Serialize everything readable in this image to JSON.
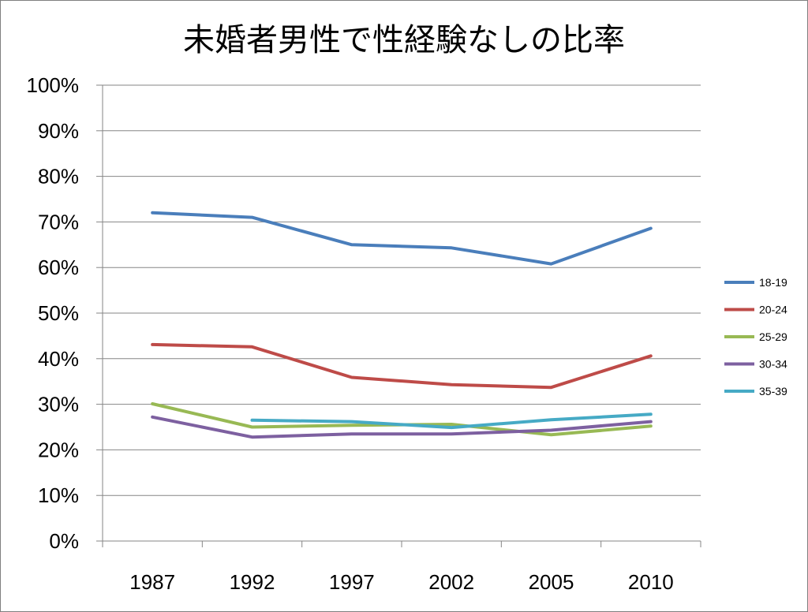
{
  "chart_data": {
    "type": "line",
    "title": "未婚者男性で性経験なしの比率",
    "xlabel": "",
    "ylabel": "",
    "categories": [
      "1987",
      "1992",
      "1997",
      "2002",
      "2005",
      "2010"
    ],
    "yticks": [
      "0%",
      "10%",
      "20%",
      "30%",
      "40%",
      "50%",
      "60%",
      "70%",
      "80%",
      "90%",
      "100%"
    ],
    "ylim": [
      0,
      100
    ],
    "grid": true,
    "legend_position": "right",
    "series": [
      {
        "name": "18-19",
        "color": "#4a7ebb",
        "values": [
          72.0,
          71.0,
          65.0,
          64.3,
          60.8,
          68.6
        ]
      },
      {
        "name": "20-24",
        "color": "#be4b48",
        "values": [
          43.1,
          42.6,
          35.9,
          34.3,
          33.7,
          40.6
        ]
      },
      {
        "name": "25-29",
        "color": "#98b954",
        "values": [
          30.1,
          25.0,
          25.4,
          25.6,
          23.3,
          25.2
        ]
      },
      {
        "name": "30-34",
        "color": "#7d60a0",
        "values": [
          27.2,
          22.8,
          23.5,
          23.5,
          24.3,
          26.2
        ]
      },
      {
        "name": "35-39",
        "color": "#46aac5",
        "values": [
          null,
          26.5,
          26.2,
          24.9,
          26.6,
          27.8
        ]
      }
    ]
  }
}
